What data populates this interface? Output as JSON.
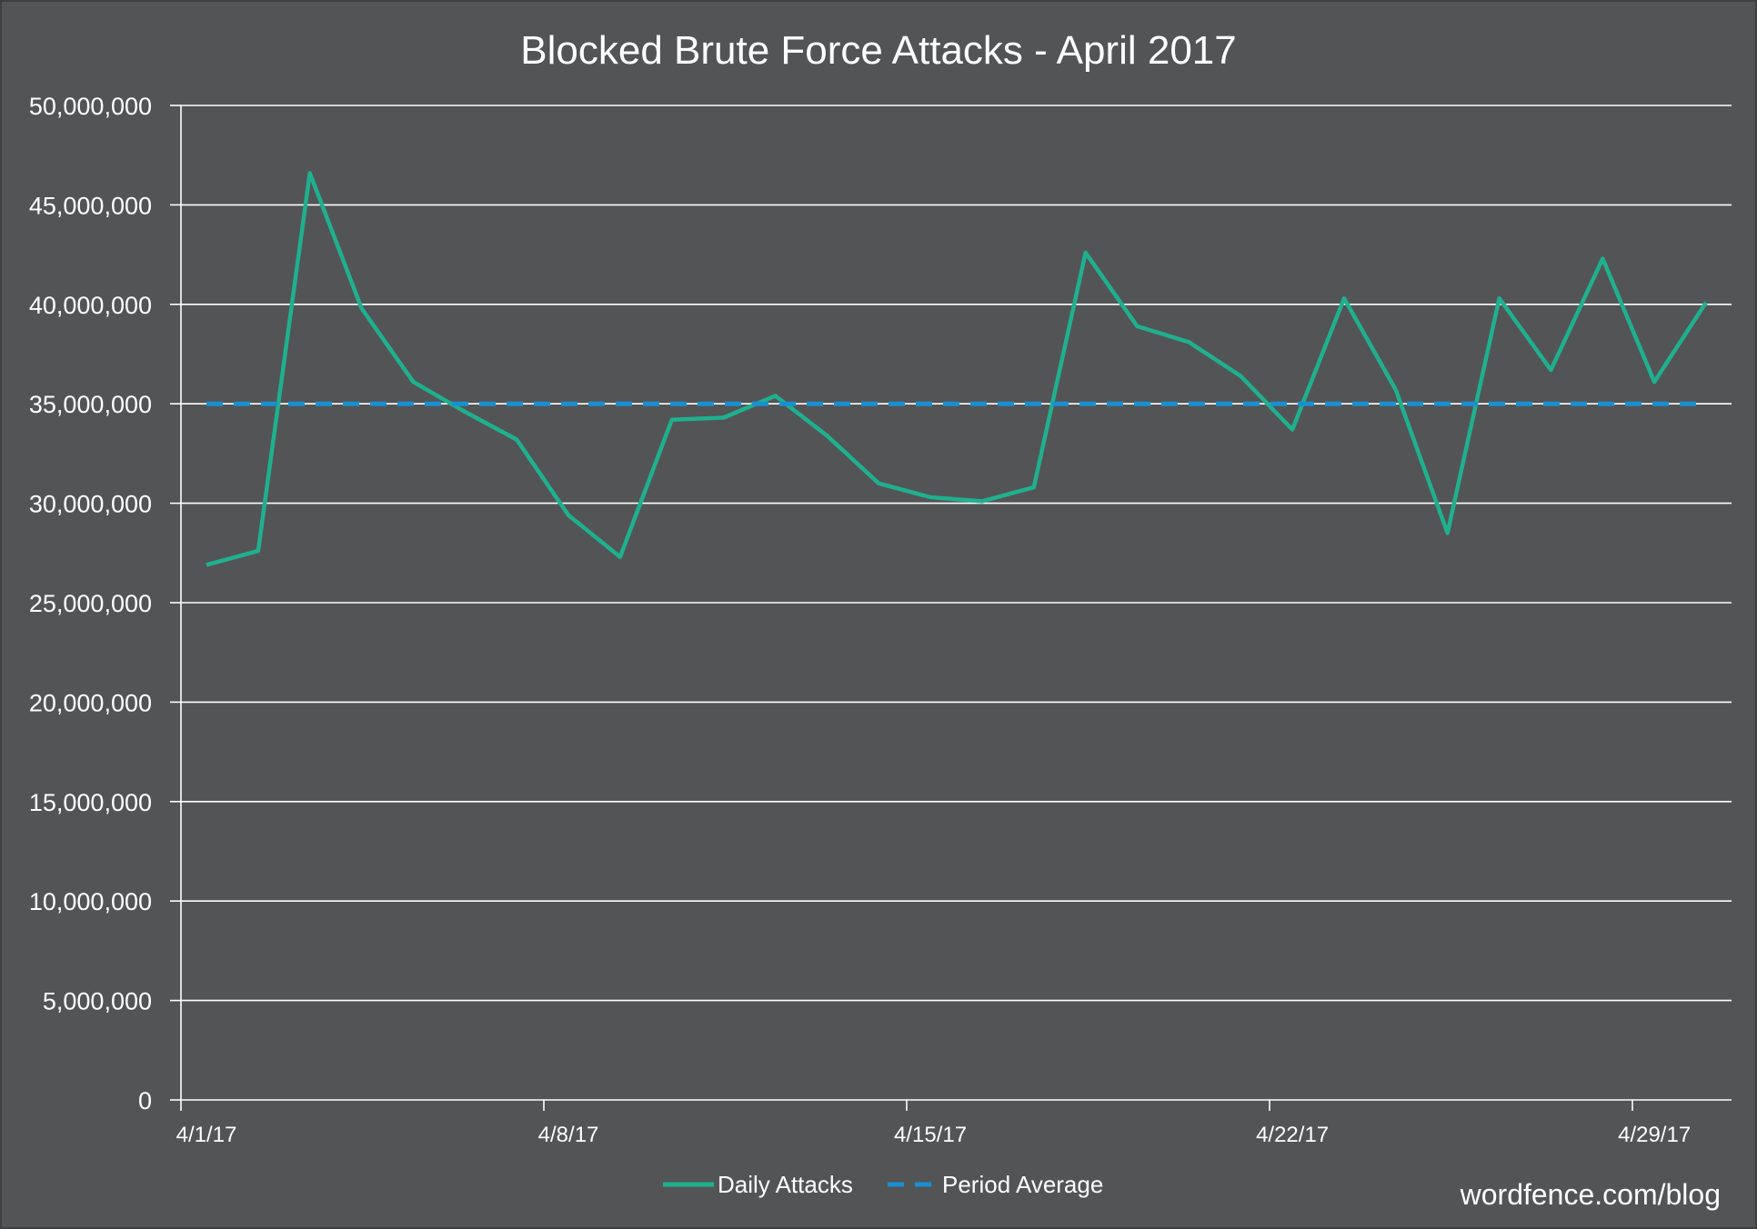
{
  "chart_data": {
    "type": "line",
    "title": "Blocked Brute Force Attacks - April 2017",
    "xlabel": "",
    "ylabel": "",
    "ylim": [
      0,
      50000000
    ],
    "y_ticks": [
      0,
      5000000,
      10000000,
      15000000,
      20000000,
      25000000,
      30000000,
      35000000,
      40000000,
      45000000,
      50000000
    ],
    "y_tick_labels": [
      "0",
      "5,000,000",
      "10,000,000",
      "15,000,000",
      "20,000,000",
      "25,000,000",
      "30,000,000",
      "35,000,000",
      "40,000,000",
      "45,000,000",
      "50,000,000"
    ],
    "x": [
      "2017-04-01",
      "2017-04-02",
      "2017-04-03",
      "2017-04-04",
      "2017-04-05",
      "2017-04-06",
      "2017-04-07",
      "2017-04-08",
      "2017-04-09",
      "2017-04-10",
      "2017-04-11",
      "2017-04-12",
      "2017-04-13",
      "2017-04-14",
      "2017-04-15",
      "2017-04-16",
      "2017-04-17",
      "2017-04-18",
      "2017-04-19",
      "2017-04-20",
      "2017-04-21",
      "2017-04-22",
      "2017-04-23",
      "2017-04-24",
      "2017-04-25",
      "2017-04-26",
      "2017-04-27",
      "2017-04-28",
      "2017-04-29",
      "2017-04-30"
    ],
    "x_tick_labels": [
      "4/1/17",
      "4/8/17",
      "4/15/17",
      "4/22/17",
      "4/29/17"
    ],
    "x_tick_dates": [
      "2017-04-01",
      "2017-04-08",
      "2017-04-15",
      "2017-04-22",
      "2017-04-29"
    ],
    "grid": true,
    "legend_position": "bottom-center",
    "series": [
      {
        "name": "Daily Attacks",
        "style": "solid",
        "color": "#1fb08f",
        "values": [
          26900000,
          27600000,
          46600000,
          39800000,
          36100000,
          34600000,
          33200000,
          29400000,
          27300000,
          34200000,
          34300000,
          35400000,
          33400000,
          31000000,
          30300000,
          30100000,
          30800000,
          42600000,
          38900000,
          38100000,
          36400000,
          33700000,
          40300000,
          35700000,
          28500000,
          40300000,
          36700000,
          42300000,
          36100000,
          40100000
        ]
      },
      {
        "name": "Period Average",
        "style": "dashed",
        "color": "#1a8fd0",
        "values": [
          35000000,
          35000000,
          35000000,
          35000000,
          35000000,
          35000000,
          35000000,
          35000000,
          35000000,
          35000000,
          35000000,
          35000000,
          35000000,
          35000000,
          35000000,
          35000000,
          35000000,
          35000000,
          35000000,
          35000000,
          35000000,
          35000000,
          35000000,
          35000000,
          35000000,
          35000000,
          35000000,
          35000000,
          35000000,
          35000000
        ]
      }
    ]
  },
  "watermark": "wordfence.com/blog",
  "colors": {
    "background": "#535456",
    "text": "#ffffff",
    "grid": "#ffffff"
  }
}
